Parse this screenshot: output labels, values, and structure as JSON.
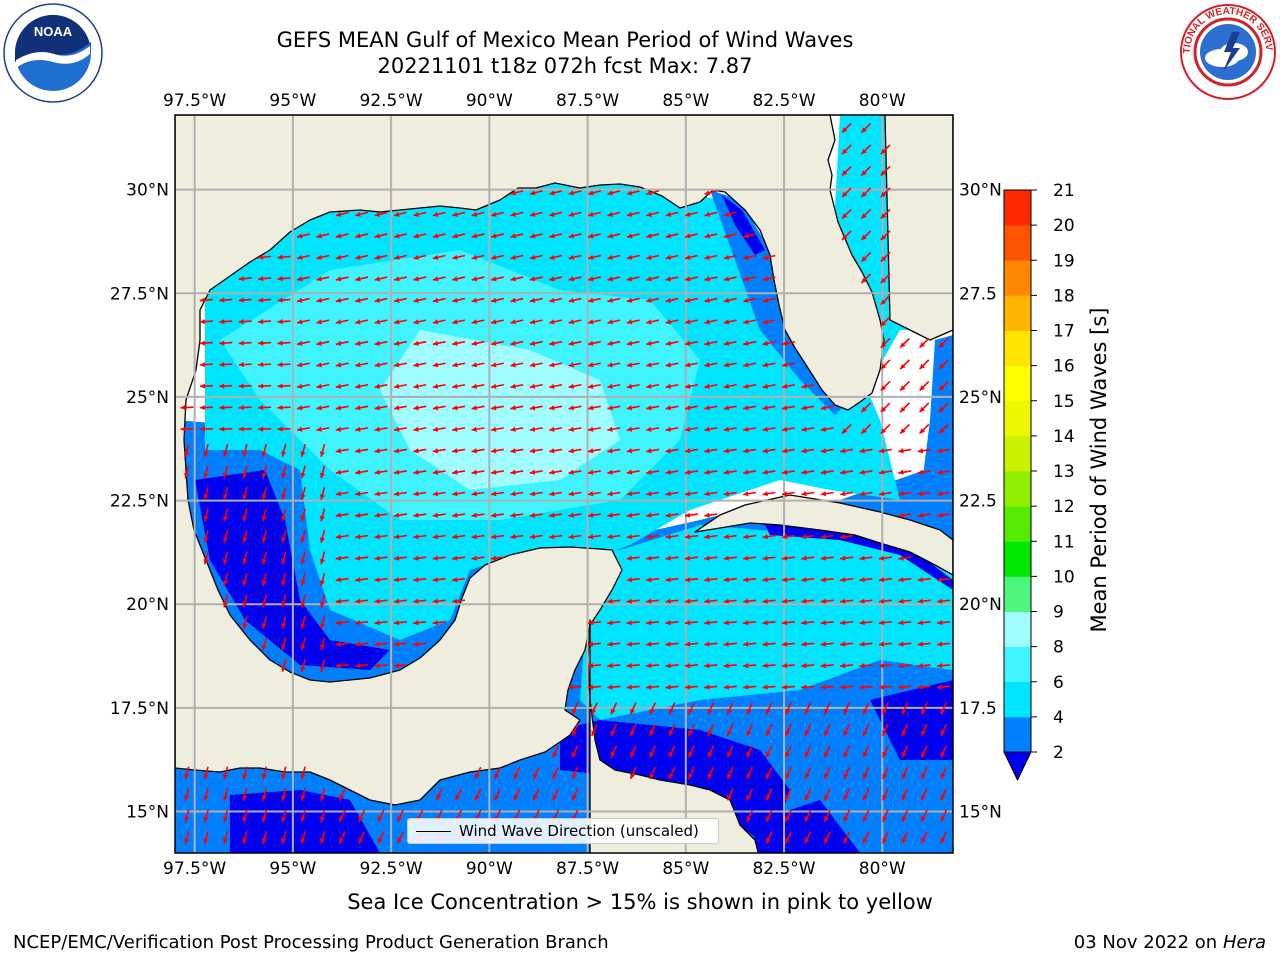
{
  "title_line1": "GEFS MEAN Gulf of Mexico Mean Period of Wind Waves",
  "title_line2": "20221101 t18z 072h fcst   Max: 7.87",
  "logos": {
    "left": "noaa-logo",
    "right": "nws-logo"
  },
  "logo_text": {
    "noaa_wordmark": "NOAA",
    "nws_ring": "NATIONAL WEATHER SERVICE"
  },
  "map": {
    "lon_labels": [
      "97.5°W",
      "95°W",
      "92.5°W",
      "90°W",
      "87.5°W",
      "85°W",
      "82.5°W",
      "80°W"
    ],
    "lat_labels_left": [
      "30°N",
      "27.5°N",
      "25°N",
      "22.5°N",
      "20°N",
      "17.5°N",
      "15°N"
    ],
    "lat_labels_right": [
      "30°N",
      "27.5",
      "25°N",
      "22.5",
      "20°N",
      "17.5",
      "15°N"
    ],
    "extent": {
      "lon_min": -98.0,
      "lon_max": -78.2,
      "lat_min": 14.0,
      "lat_max": 31.8
    },
    "land_color": "#efedde",
    "arrow_color": "#ff0000",
    "gridline_color": "#b0b0b0"
  },
  "legend": {
    "label": "Wind Wave Direction (unscaled)"
  },
  "colorbar": {
    "label": "Mean Period of Wind Waves [s]",
    "ticks": [
      "2",
      "4",
      "6",
      "8",
      "9",
      "10",
      "11",
      "12",
      "13",
      "14",
      "15",
      "16",
      "17",
      "18",
      "19",
      "20",
      "21"
    ],
    "levels": [
      2,
      4,
      6,
      8,
      9,
      10,
      11,
      12,
      13,
      14,
      15,
      16,
      17,
      18,
      19,
      20,
      21
    ],
    "colors": [
      "#0080ff",
      "#00e5ff",
      "#3ff3ff",
      "#9ffcff",
      "#4cf57c",
      "#00e800",
      "#55ea00",
      "#90ef00",
      "#c8f200",
      "#ecf700",
      "#fcff00",
      "#ffe400",
      "#ffb400",
      "#ff8800",
      "#ff5500",
      "#ff2a00",
      "#ff0000"
    ],
    "under_color": "#0000f0"
  },
  "caption": "Sea Ice Concentration > 15% is shown in pink to yellow",
  "footer_left": "NCEP/EMC/Verification Post Processing Product Generation Branch",
  "footer_right_date": "03 Nov 2022 on",
  "footer_right_host": "Hera"
}
